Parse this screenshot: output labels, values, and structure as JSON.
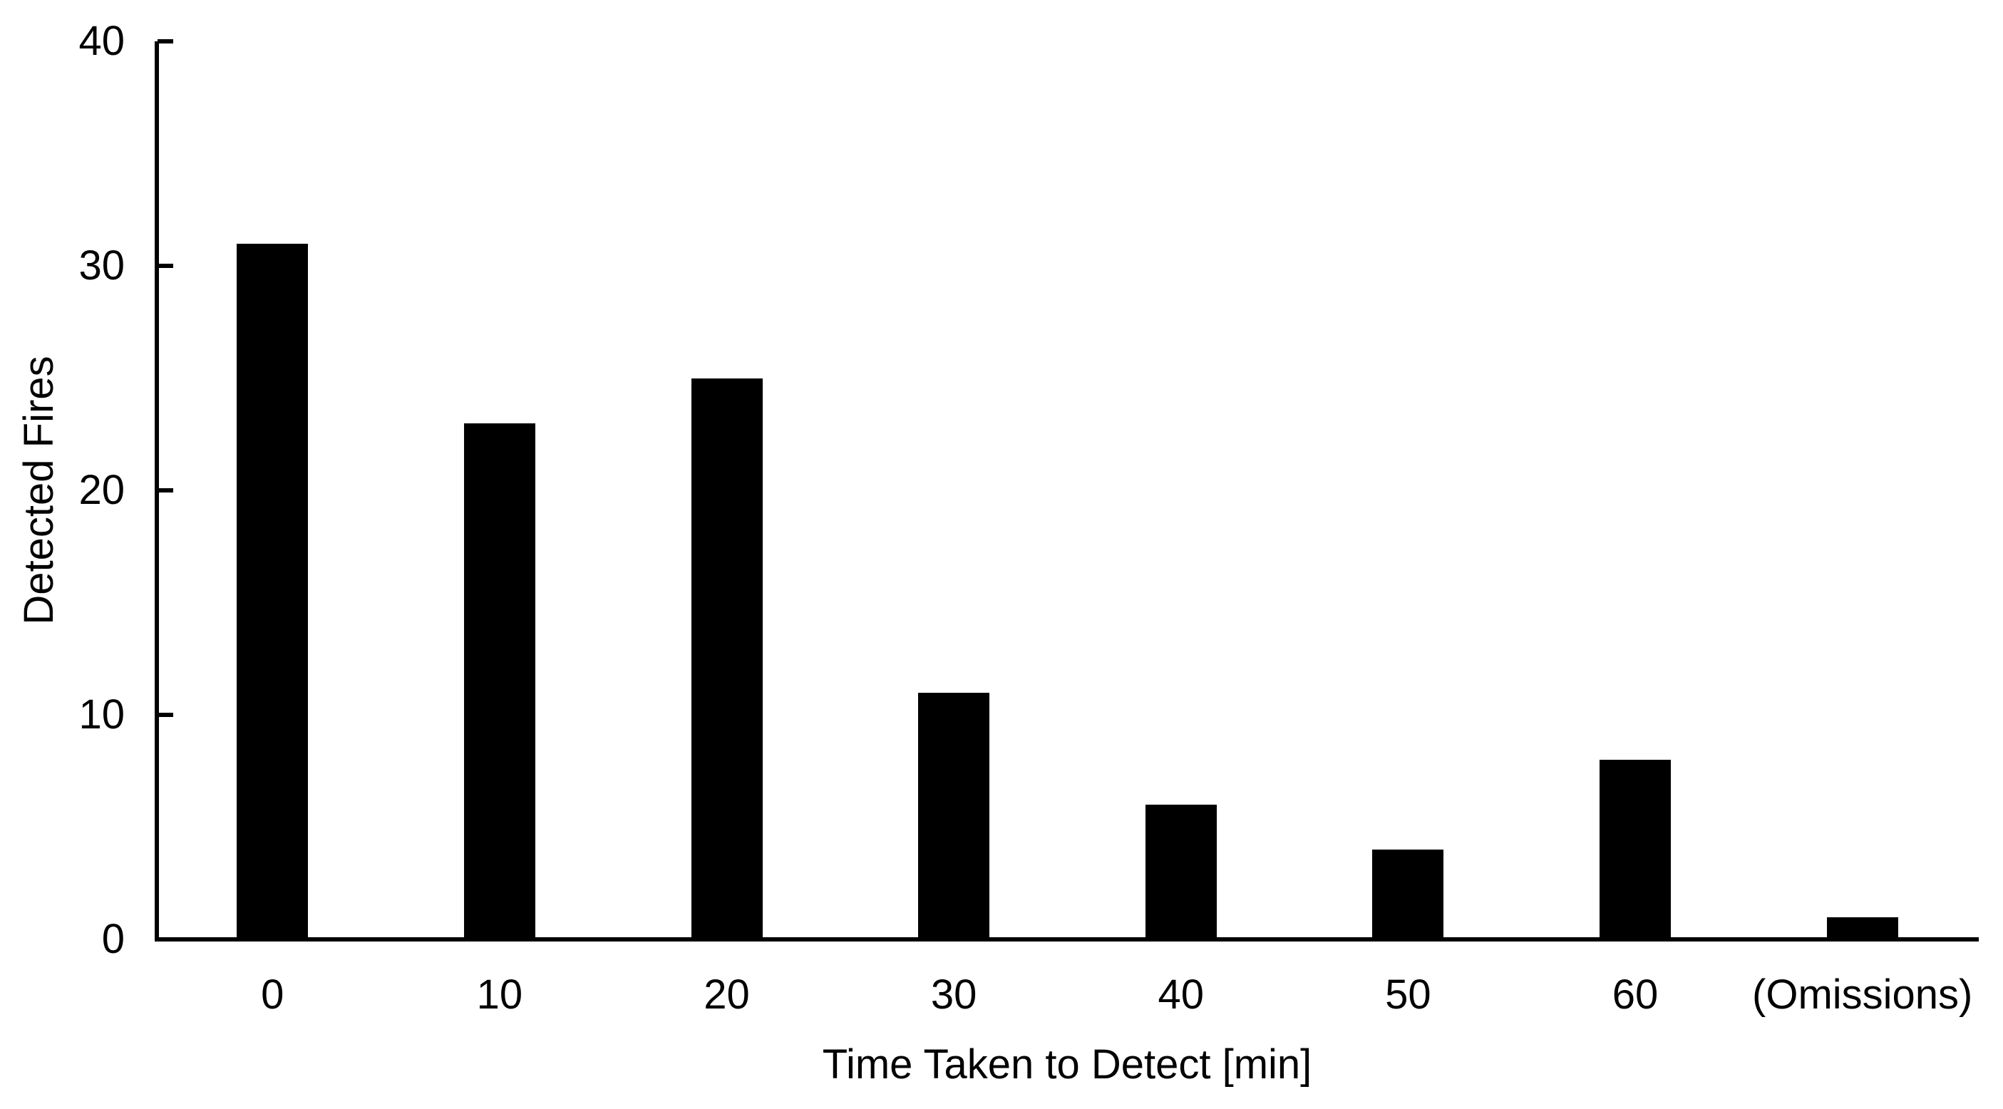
{
  "chart_data": {
    "type": "bar",
    "title": "",
    "xlabel": "Time Taken to Detect [min]",
    "ylabel": "Detected Fires",
    "categories": [
      "0",
      "10",
      "20",
      "30",
      "40",
      "50",
      "60",
      "(Omissions)"
    ],
    "values": [
      31,
      23,
      25,
      11,
      6,
      4,
      8,
      1
    ],
    "ylim": [
      0,
      40
    ],
    "yticks": [
      0,
      10,
      20,
      30,
      40
    ],
    "grid": "off",
    "legend": "none",
    "bar_color": "#000000",
    "axis_color": "#000000",
    "background_color": "#ffffff"
  }
}
